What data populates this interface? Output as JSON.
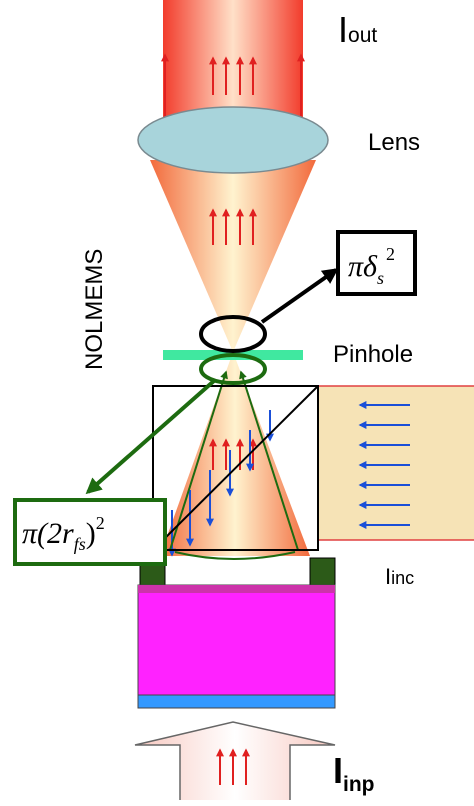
{
  "labels": {
    "i_out": {
      "main": "I",
      "sub": "out"
    },
    "lens": "Lens",
    "nolmems": "NOLMEMS",
    "pinhole": "Pinhole",
    "i_inc": {
      "main": "I",
      "sub": "inc"
    },
    "i_inp": {
      "main": "I",
      "sub": "inp"
    }
  },
  "formulas": {
    "focal_spot": {
      "base": "πδ",
      "sub": "s",
      "sup": "2"
    },
    "fiber_spot": {
      "pre": "π(2r",
      "sub": "fs",
      "post": ")",
      "sup": "2"
    }
  }
}
